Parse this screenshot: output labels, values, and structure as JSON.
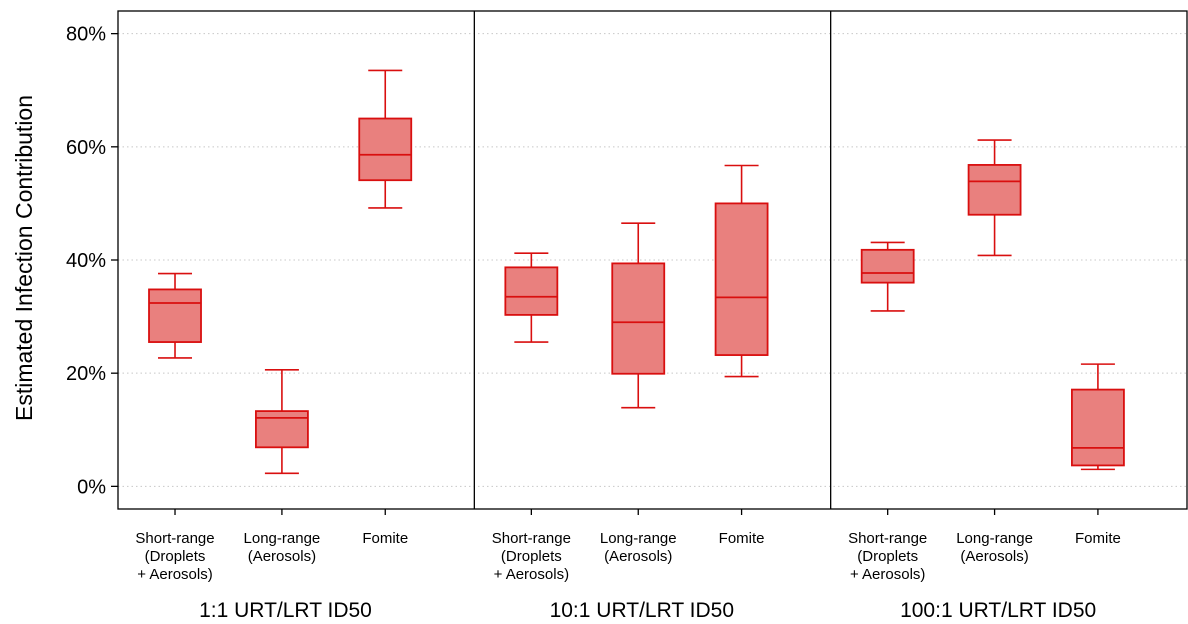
{
  "chart_data": {
    "type": "box",
    "ylabel": "Estimated Infection Contribution",
    "ylim": [
      -4,
      84
    ],
    "yticks": [
      {
        "value": 0,
        "label": "0%"
      },
      {
        "value": 20,
        "label": "20%"
      },
      {
        "value": 40,
        "label": "40%"
      },
      {
        "value": 60,
        "label": "60%"
      },
      {
        "value": 80,
        "label": "80%"
      }
    ],
    "grid": "horizontal-dotted",
    "colors": {
      "box_fill": "#e9807e",
      "box_stroke": "#d90f0f",
      "grid": "#c8c8c8"
    },
    "categories": [
      {
        "lines": [
          "Short-range",
          "(Droplets",
          "+ Aerosols)"
        ]
      },
      {
        "lines": [
          "Long-range",
          "(Aerosols)"
        ]
      },
      {
        "lines": [
          "Fomite"
        ]
      }
    ],
    "panels": [
      {
        "label": "1:1 URT/LRT ID50",
        "boxes": [
          {
            "whisker_low": 22.7,
            "q1": 25.5,
            "median": 32.4,
            "q3": 34.8,
            "whisker_high": 37.6
          },
          {
            "whisker_low": 2.3,
            "q1": 6.9,
            "median": 12.1,
            "q3": 13.3,
            "whisker_high": 20.6
          },
          {
            "whisker_low": 49.2,
            "q1": 54.1,
            "median": 58.6,
            "q3": 65.0,
            "whisker_high": 73.5
          }
        ]
      },
      {
        "label": "10:1 URT/LRT ID50",
        "boxes": [
          {
            "whisker_low": 25.5,
            "q1": 30.3,
            "median": 33.5,
            "q3": 38.7,
            "whisker_high": 41.2
          },
          {
            "whisker_low": 13.9,
            "q1": 19.9,
            "median": 29.0,
            "q3": 39.4,
            "whisker_high": 46.5
          },
          {
            "whisker_low": 19.4,
            "q1": 23.2,
            "median": 33.4,
            "q3": 50.0,
            "whisker_high": 56.7
          }
        ]
      },
      {
        "label": "100:1 URT/LRT ID50",
        "boxes": [
          {
            "whisker_low": 31.0,
            "q1": 36.0,
            "median": 37.7,
            "q3": 41.8,
            "whisker_high": 43.1
          },
          {
            "whisker_low": 40.8,
            "q1": 48.0,
            "median": 53.9,
            "q3": 56.8,
            "whisker_high": 61.2
          },
          {
            "whisker_low": 3.0,
            "q1": 3.7,
            "median": 6.8,
            "q3": 17.1,
            "whisker_high": 21.6
          }
        ]
      }
    ]
  }
}
